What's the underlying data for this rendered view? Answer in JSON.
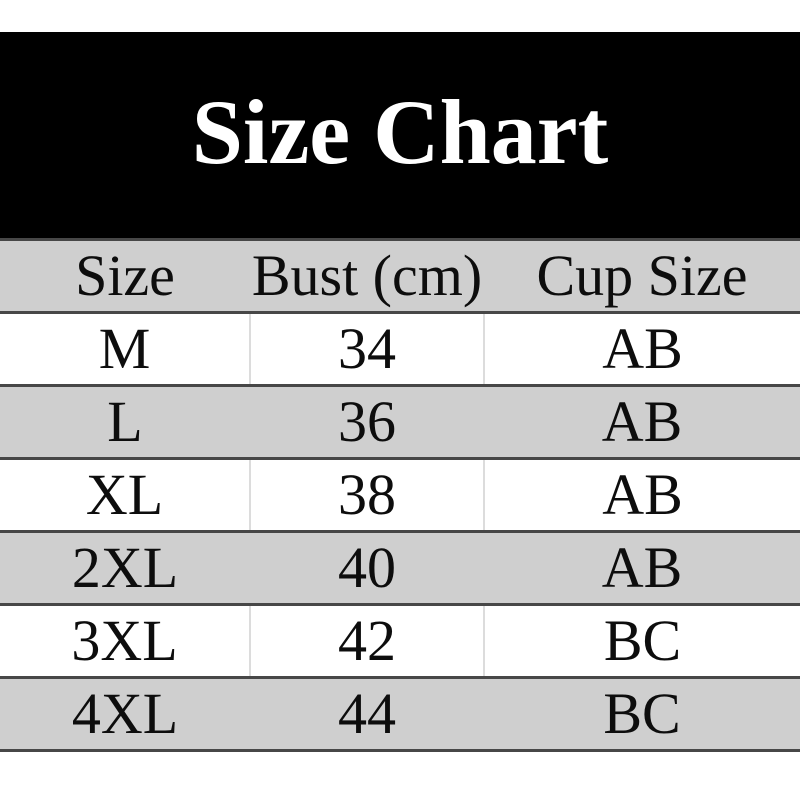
{
  "page": {
    "background_color": "#ffffff"
  },
  "banner": {
    "title": "Size Chart",
    "background_color": "#000000",
    "text_color": "#ffffff"
  },
  "table": {
    "columns": [
      "Size",
      "Bust (cm)",
      "Cup Size"
    ],
    "rows": [
      [
        "M",
        "34",
        "AB"
      ],
      [
        "L",
        "36",
        "AB"
      ],
      [
        "XL",
        "38",
        "AB"
      ],
      [
        "2XL",
        "40",
        "AB"
      ],
      [
        "3XL",
        "42",
        "BC"
      ],
      [
        "4XL",
        "44",
        "BC"
      ]
    ],
    "colors": {
      "header_background": "#cfcfcf",
      "alternate_row_background": "#cfcfcf",
      "row_background": "#ffffff",
      "horizontal_border": "#474747",
      "column_separator": "#dcdcdc",
      "text": "#0d0d0d"
    }
  },
  "chart_data": {
    "type": "table",
    "title": "Size Chart",
    "columns": [
      "Size",
      "Bust (cm)",
      "Cup Size"
    ],
    "rows": [
      [
        "M",
        34,
        "AB"
      ],
      [
        "L",
        36,
        "AB"
      ],
      [
        "XL",
        38,
        "AB"
      ],
      [
        "2XL",
        40,
        "AB"
      ],
      [
        "3XL",
        42,
        "BC"
      ],
      [
        "4XL",
        44,
        "BC"
      ]
    ],
    "layout": {
      "header_shaded": true,
      "zebra_striping": "white/gray alternating starting white",
      "title_position": "black banner above table"
    }
  }
}
